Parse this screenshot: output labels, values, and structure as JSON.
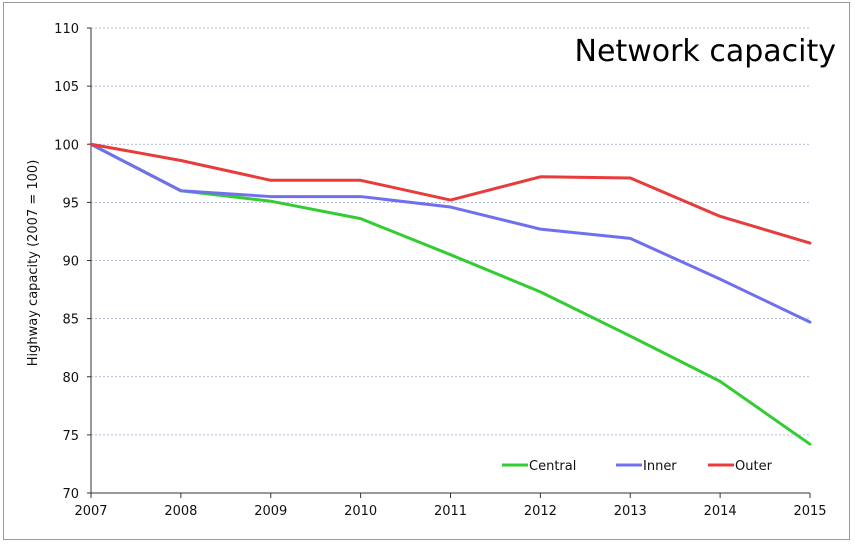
{
  "chart_data": {
    "type": "line",
    "title": "Network capacity",
    "xlabel": "",
    "ylabel": "Highway capacity (2007 = 100)",
    "x": [
      2007,
      2008,
      2009,
      2010,
      2011,
      2012,
      2013,
      2014,
      2015
    ],
    "ylim": [
      70,
      110
    ],
    "yticks": [
      70,
      75,
      80,
      85,
      90,
      95,
      100,
      105,
      110
    ],
    "grid": "horizontal dotted",
    "legend_position": "bottom-right",
    "series": [
      {
        "name": "Central",
        "color": "#33cc33",
        "values": [
          100,
          96.0,
          95.1,
          93.6,
          90.5,
          87.3,
          83.5,
          79.6,
          74.2
        ]
      },
      {
        "name": "Inner",
        "color": "#7070ee",
        "values": [
          100,
          96.0,
          95.5,
          95.5,
          94.6,
          92.7,
          91.9,
          88.4,
          84.7
        ]
      },
      {
        "name": "Outer",
        "color": "#e83c3c",
        "values": [
          100,
          98.6,
          96.9,
          96.9,
          95.2,
          97.2,
          97.1,
          93.8,
          91.5
        ]
      }
    ]
  }
}
